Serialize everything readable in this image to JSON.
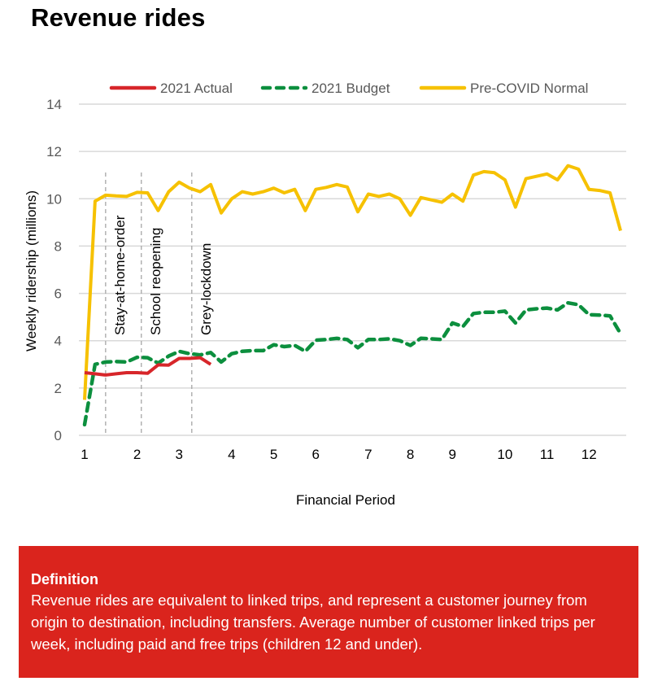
{
  "page": {
    "title": "Revenue rides"
  },
  "definition": {
    "heading": "Definition",
    "body": "Revenue rides are equivalent to linked trips, and represent a customer journey from origin to destination, including transfers. Average number of customer linked trips per week, including paid and free trips (children 12 and under)."
  },
  "colors": {
    "actual": "#d7262a",
    "budget": "#0c8f3e",
    "precovid": "#f6c100",
    "definition_bg": "#da241d",
    "grid": "#d9d9d9",
    "annotation_line": "#a6a6a6"
  },
  "chart_data": {
    "type": "line",
    "title": "",
    "xlabel": "Financial Period",
    "ylabel": "Weekly ridership (millions)",
    "ylim": [
      0,
      14
    ],
    "yticks": [
      0,
      2,
      4,
      6,
      8,
      10,
      12,
      14
    ],
    "grid": true,
    "legend_position": "top",
    "x_unit": "week index (0-51) within fiscal year",
    "period_ticks": [
      {
        "label": "1",
        "week": 0
      },
      {
        "label": "2",
        "week": 5
      },
      {
        "label": "3",
        "week": 9
      },
      {
        "label": "4",
        "week": 14
      },
      {
        "label": "5",
        "week": 18
      },
      {
        "label": "6",
        "week": 22
      },
      {
        "label": "7",
        "week": 27
      },
      {
        "label": "8",
        "week": 31
      },
      {
        "label": "9",
        "week": 35
      },
      {
        "label": "10",
        "week": 40
      },
      {
        "label": "11",
        "week": 44
      },
      {
        "label": "12",
        "week": 48
      }
    ],
    "annotations": [
      {
        "label": "Stay-at-home-order",
        "week": 2
      },
      {
        "label": "School reopening",
        "week": 5.4
      },
      {
        "label": "Grey-lockdown",
        "week": 10.2
      }
    ],
    "series": [
      {
        "name": "2021 Actual",
        "color": "#d7262a",
        "style": "solid",
        "start_week": 0,
        "values": [
          2.65,
          2.6,
          2.55,
          2.6,
          2.65,
          2.65,
          2.62,
          2.98,
          2.97,
          3.25,
          3.25,
          3.28,
          3.0
        ]
      },
      {
        "name": "2021 Budget",
        "color": "#0c8f3e",
        "style": "dashed",
        "start_week": 0,
        "values": [
          0.45,
          3.0,
          3.1,
          3.12,
          3.1,
          3.3,
          3.28,
          3.05,
          3.35,
          3.55,
          3.45,
          3.4,
          3.5,
          3.1,
          3.45,
          3.55,
          3.58,
          3.58,
          3.83,
          3.75,
          3.8,
          3.55,
          4.02,
          4.05,
          4.1,
          4.05,
          3.7,
          4.05,
          4.05,
          4.08,
          4.0,
          3.8,
          4.1,
          4.08,
          4.05,
          4.75,
          4.6,
          5.15,
          5.2,
          5.2,
          5.25,
          4.75,
          5.3,
          5.35,
          5.38,
          5.3,
          5.6,
          5.52,
          5.1,
          5.08,
          5.05,
          4.3
        ]
      },
      {
        "name": "Pre-COVID Normal",
        "color": "#f6c100",
        "style": "solid",
        "start_week": 0,
        "values": [
          1.5,
          9.9,
          10.15,
          10.12,
          10.1,
          10.27,
          10.25,
          9.5,
          10.3,
          10.7,
          10.45,
          10.3,
          10.6,
          9.4,
          10.0,
          10.3,
          10.2,
          10.3,
          10.45,
          10.25,
          10.4,
          9.5,
          10.4,
          10.48,
          10.6,
          10.5,
          9.45,
          10.2,
          10.1,
          10.2,
          10.0,
          9.3,
          10.05,
          9.95,
          9.85,
          10.2,
          9.9,
          11.0,
          11.15,
          11.1,
          10.8,
          9.65,
          10.85,
          10.95,
          11.05,
          10.8,
          11.4,
          11.25,
          10.4,
          10.35,
          10.25,
          8.65
        ]
      }
    ]
  }
}
